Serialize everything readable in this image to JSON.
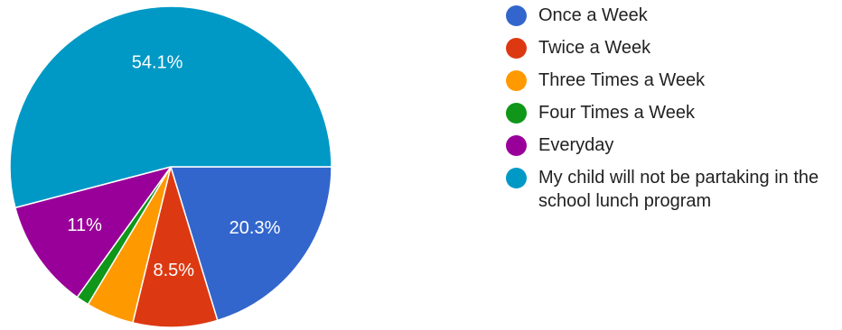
{
  "chart_data": {
    "type": "pie",
    "title": "",
    "categories": [
      "Once a Week",
      "Twice a Week",
      "Three Times a Week",
      "Four Times a Week",
      "Everyday",
      "My child will not be partaking in the school lunch program"
    ],
    "values": [
      20.3,
      8.5,
      4.8,
      1.3,
      11,
      54.1
    ],
    "value_labels": [
      "20.3%",
      "8.5%",
      "",
      "",
      "11%",
      "54.1%"
    ],
    "colors": [
      "#3366cc",
      "#dc3912",
      "#ff9900",
      "#109618",
      "#990099",
      "#0099c6"
    ],
    "legend_position": "right"
  }
}
